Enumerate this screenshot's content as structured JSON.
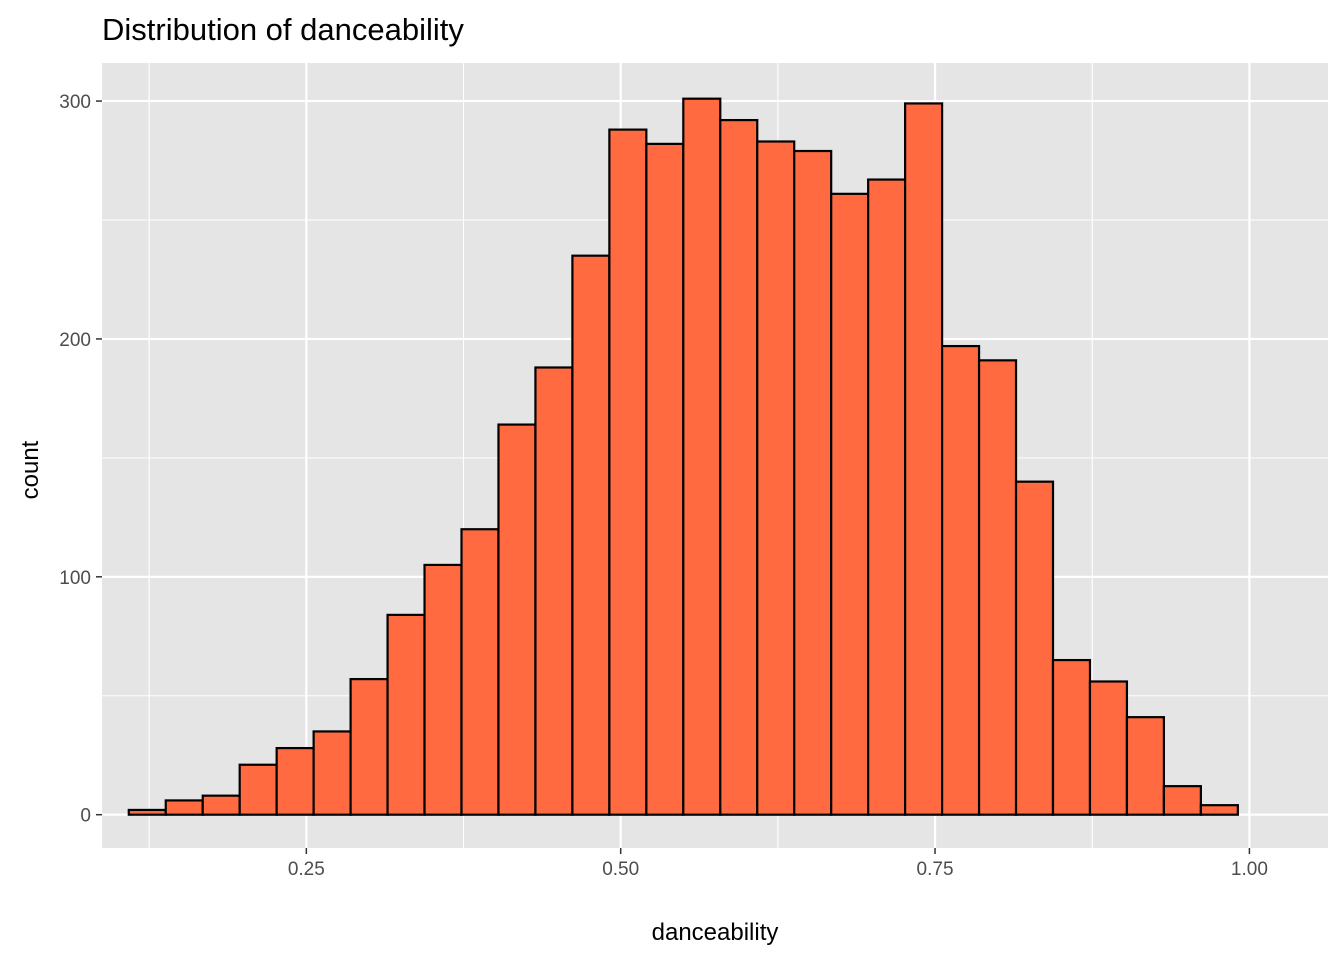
{
  "chart_data": {
    "type": "bar",
    "title": "Distribution of danceability",
    "xlabel": "danceability",
    "ylabel": "count",
    "xlim": [
      0.0875,
      1.0625
    ],
    "ylim": [
      -14,
      316
    ],
    "x_ticks": [
      0.25,
      0.5,
      0.75,
      1.0
    ],
    "x_tick_labels": [
      "0.25",
      "0.50",
      "0.75",
      "1.00"
    ],
    "y_ticks": [
      0,
      100,
      200,
      300
    ],
    "y_tick_labels": [
      "0",
      "100",
      "200",
      "300"
    ],
    "grid": true,
    "bin_width": 0.0294,
    "bin_centers": [
      0.1235,
      0.1529,
      0.1823,
      0.2117,
      0.2411,
      0.2705,
      0.2999,
      0.3293,
      0.3587,
      0.3881,
      0.4175,
      0.4469,
      0.4763,
      0.5057,
      0.5351,
      0.5645,
      0.5939,
      0.6233,
      0.6527,
      0.6821,
      0.7115,
      0.7409,
      0.7703,
      0.7997,
      0.8291,
      0.8585,
      0.8879,
      0.9173,
      0.9467,
      0.9761
    ],
    "values": [
      2,
      6,
      8,
      21,
      28,
      35,
      57,
      84,
      105,
      120,
      164,
      188,
      235,
      288,
      282,
      301,
      292,
      283,
      279,
      261,
      267,
      299,
      197,
      191,
      140,
      65,
      56,
      41,
      12,
      4
    ],
    "colors": {
      "bar_fill": "#ff6a40",
      "bar_outline": "#000000",
      "panel": "#e5e5e5",
      "grid": "#ffffff"
    }
  }
}
